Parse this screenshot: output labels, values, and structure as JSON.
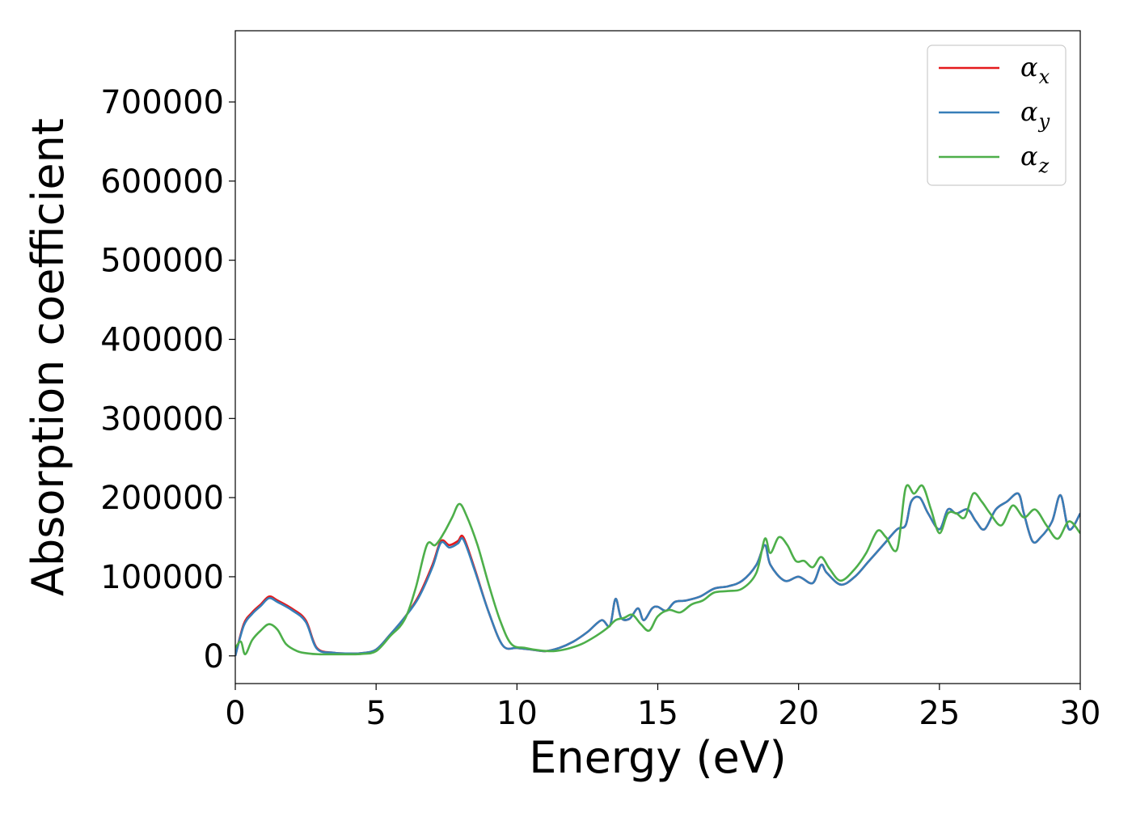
{
  "chart_data": {
    "type": "line",
    "xlabel": "Energy (eV)",
    "ylabel": "Absorption coefficient",
    "xlim": [
      0,
      30
    ],
    "ylim": [
      -35000,
      790000
    ],
    "xticks": [
      "0",
      "5",
      "10",
      "15",
      "20",
      "25",
      "30"
    ],
    "yticks": [
      "0",
      "100000",
      "200000",
      "300000",
      "400000",
      "500000",
      "600000",
      "700000"
    ],
    "grid": false,
    "legend_position": "top-right",
    "series": [
      {
        "name": "αx",
        "base": "α",
        "sub": "x",
        "color": "#e41a1c",
        "x": [
          0,
          0.3,
          0.6,
          0.9,
          1.2,
          1.5,
          2.0,
          2.5,
          2.9,
          3.5,
          4.0,
          4.5,
          5.0,
          5.5,
          6.0,
          6.5,
          7.0,
          7.3,
          7.6,
          7.9,
          8.1,
          8.5,
          9.0,
          9.5,
          10.0,
          10.5,
          11.0,
          11.5,
          12.0,
          12.5,
          13.0,
          13.3,
          13.5,
          13.7,
          14.0,
          14.3,
          14.5,
          14.8,
          15.0,
          15.3,
          15.6,
          16.0,
          16.5,
          17.0,
          17.5,
          18.0,
          18.5,
          18.8,
          19.0,
          19.5,
          20.0,
          20.5,
          20.8,
          21.0,
          21.5,
          22.0,
          22.5,
          23.0,
          23.5,
          23.8,
          24.0,
          24.3,
          24.6,
          25.0,
          25.3,
          25.6,
          26.0,
          26.3,
          26.6,
          27.0,
          27.4,
          27.8,
          28.0,
          28.3,
          28.6,
          29.0,
          29.3,
          29.6,
          30.0
        ],
        "y": [
          0,
          40000,
          55000,
          65000,
          75000,
          70000,
          60000,
          45000,
          10000,
          4000,
          3000,
          3500,
          8000,
          27000,
          48000,
          75000,
          115000,
          145000,
          140000,
          145000,
          150000,
          110000,
          55000,
          13000,
          10000,
          8000,
          6000,
          10000,
          18000,
          30000,
          45000,
          38000,
          72000,
          48000,
          47000,
          60000,
          45000,
          60000,
          62000,
          57000,
          68000,
          70000,
          75000,
          85000,
          88000,
          95000,
          115000,
          140000,
          115000,
          95000,
          100000,
          92000,
          115000,
          105000,
          90000,
          100000,
          120000,
          140000,
          160000,
          165000,
          195000,
          200000,
          180000,
          160000,
          185000,
          180000,
          185000,
          170000,
          160000,
          185000,
          195000,
          205000,
          180000,
          145000,
          150000,
          170000,
          203000,
          160000,
          180000
        ]
      },
      {
        "name": "αy",
        "base": "α",
        "sub": "y",
        "color": "#377eb8",
        "x": [
          0,
          0.3,
          0.6,
          0.9,
          1.2,
          1.5,
          2.0,
          2.5,
          2.9,
          3.5,
          4.0,
          4.5,
          5.0,
          5.5,
          6.0,
          6.5,
          7.0,
          7.3,
          7.6,
          7.9,
          8.1,
          8.5,
          9.0,
          9.5,
          10.0,
          10.5,
          11.0,
          11.5,
          12.0,
          12.5,
          13.0,
          13.3,
          13.5,
          13.7,
          14.0,
          14.3,
          14.5,
          14.8,
          15.0,
          15.3,
          15.6,
          16.0,
          16.5,
          17.0,
          17.5,
          18.0,
          18.5,
          18.8,
          19.0,
          19.5,
          20.0,
          20.5,
          20.8,
          21.0,
          21.5,
          22.0,
          22.5,
          23.0,
          23.5,
          23.8,
          24.0,
          24.3,
          24.6,
          25.0,
          25.3,
          25.6,
          26.0,
          26.3,
          26.6,
          27.0,
          27.4,
          27.8,
          28.0,
          28.3,
          28.6,
          29.0,
          29.3,
          29.6,
          30.0
        ],
        "y": [
          0,
          38000,
          53000,
          63000,
          73000,
          68000,
          58000,
          43000,
          9000,
          4000,
          3000,
          3500,
          8000,
          27000,
          48000,
          73000,
          112000,
          143000,
          137000,
          142000,
          147000,
          108000,
          55000,
          13000,
          10000,
          8000,
          6000,
          10000,
          18000,
          30000,
          45000,
          38000,
          72000,
          48000,
          47000,
          60000,
          45000,
          60000,
          62000,
          57000,
          68000,
          70000,
          75000,
          85000,
          88000,
          95000,
          115000,
          140000,
          115000,
          95000,
          100000,
          92000,
          115000,
          105000,
          90000,
          100000,
          120000,
          140000,
          160000,
          165000,
          195000,
          200000,
          180000,
          160000,
          185000,
          180000,
          185000,
          170000,
          160000,
          185000,
          195000,
          205000,
          180000,
          145000,
          150000,
          170000,
          203000,
          160000,
          180000
        ]
      },
      {
        "name": "αz",
        "base": "α",
        "sub": "z",
        "color": "#4daf4a",
        "x": [
          0,
          0.2,
          0.35,
          0.6,
          0.9,
          1.2,
          1.5,
          1.8,
          2.2,
          2.6,
          3.0,
          3.5,
          4.0,
          4.5,
          5.0,
          5.5,
          6.0,
          6.4,
          6.8,
          7.1,
          7.4,
          7.7,
          7.95,
          8.2,
          8.6,
          9.0,
          9.4,
          9.8,
          10.3,
          10.8,
          11.3,
          11.8,
          12.3,
          12.8,
          13.2,
          13.5,
          13.8,
          14.1,
          14.4,
          14.7,
          15.0,
          15.4,
          15.8,
          16.2,
          16.6,
          17.0,
          17.5,
          18.0,
          18.5,
          18.8,
          19.0,
          19.3,
          19.6,
          19.9,
          20.2,
          20.5,
          20.8,
          21.1,
          21.5,
          22.0,
          22.4,
          22.8,
          23.1,
          23.5,
          23.8,
          24.1,
          24.4,
          24.7,
          25.0,
          25.3,
          25.6,
          25.9,
          26.2,
          26.5,
          26.8,
          27.2,
          27.6,
          28.0,
          28.4,
          28.8,
          29.2,
          29.6,
          30.0
        ],
        "y": [
          10000,
          18000,
          2000,
          20000,
          32000,
          40000,
          33000,
          15000,
          6000,
          3000,
          2000,
          2000,
          2000,
          2500,
          6000,
          25000,
          45000,
          85000,
          140000,
          140000,
          155000,
          175000,
          192000,
          178000,
          140000,
          90000,
          45000,
          15000,
          10000,
          7000,
          6000,
          9000,
          15000,
          25000,
          35000,
          45000,
          48000,
          52000,
          40000,
          32000,
          50000,
          58000,
          55000,
          65000,
          70000,
          80000,
          82000,
          85000,
          105000,
          148000,
          130000,
          150000,
          140000,
          120000,
          120000,
          112000,
          125000,
          110000,
          95000,
          110000,
          130000,
          158000,
          150000,
          135000,
          212000,
          205000,
          215000,
          185000,
          155000,
          180000,
          180000,
          175000,
          205000,
          195000,
          180000,
          165000,
          190000,
          175000,
          185000,
          165000,
          148000,
          170000,
          155000
        ]
      }
    ]
  }
}
